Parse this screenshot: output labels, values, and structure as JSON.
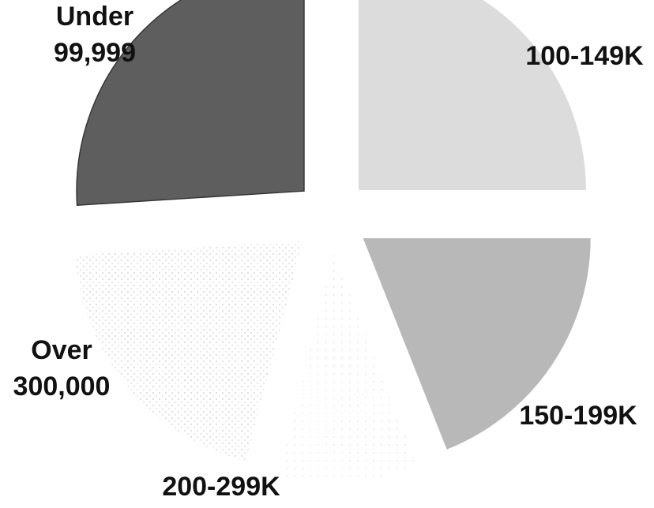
{
  "chart_data": {
    "type": "pie",
    "title": "",
    "slices": [
      {
        "label_lines": [
          "Under",
          "99,999"
        ],
        "value": 26,
        "color": "#5e5e5e"
      },
      {
        "label_lines": [
          "100-149K"
        ],
        "value": 25,
        "color": "#dcdcdc"
      },
      {
        "label_lines": [
          "150-199K"
        ],
        "value": 19,
        "color": "#b8b8b8"
      },
      {
        "label_lines": [
          "200-299K"
        ],
        "value": 10,
        "color": "#ffffff"
      },
      {
        "label_lines": [
          "Over",
          "300,000"
        ],
        "value": 20,
        "color": "#f4f4f4"
      }
    ]
  }
}
